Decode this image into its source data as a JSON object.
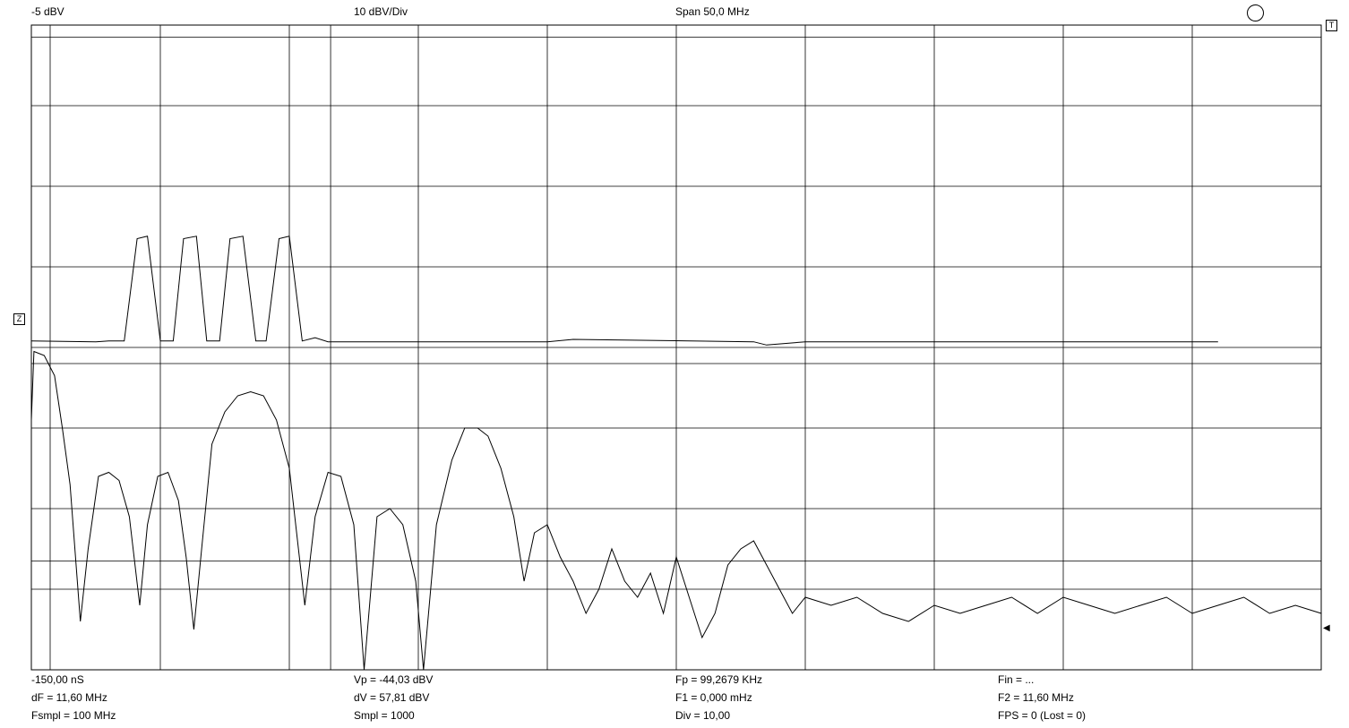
{
  "header": {
    "ref_level": "-5 dBV",
    "scale": "10 dBV/Div",
    "span": "Span 50,0 MHz"
  },
  "markers": {
    "trigger": "T",
    "zero": "Z"
  },
  "footer": {
    "col1": [
      "-150,00 nS",
      "dF = 11,60 MHz",
      "Fsmpl = 100 MHz"
    ],
    "col2": [
      "Vp = -44,03 dBV",
      "dV = 57,81 dBV",
      "Smpl = 1000"
    ],
    "col3": [
      "Fp = 99,2679 KHz",
      "F1 = 0,000 mHz",
      "Div = 10,00"
    ],
    "col4": [
      "Fin = ...",
      "F2 = 11,60 MHz",
      "FPS = 0 (Lost = 0)"
    ]
  },
  "icons": {
    "circle": "circle-icon",
    "trigger_marker": "trigger-marker-icon",
    "zero_marker": "zero-marker-icon",
    "right_arrow": "right-arrow-icon"
  },
  "colors": {
    "background": "#ffffff",
    "trace": "#000000",
    "grid": "#000000"
  },
  "chart_data": {
    "type": "line",
    "grid": true,
    "x_divisions": 10,
    "y_divisions": 8,
    "units": {
      "x": "MHz",
      "y": "dBV"
    },
    "xlim": [
      0,
      50
    ],
    "ylim": [
      -85,
      -5
    ],
    "cursors": {
      "vertical_MHz": [
        0,
        11.6
      ],
      "horizontal_dBV": [
        -6.5,
        -47,
        -71.5
      ]
    },
    "series": [
      {
        "role": "time-domain trace",
        "points": [
          [
            0.0,
            -44.2
          ],
          [
            2.5,
            -44.3
          ],
          [
            3.0,
            -44.2
          ],
          [
            3.6,
            -44.2
          ],
          [
            4.1,
            -31.5
          ],
          [
            4.5,
            -31.2
          ],
          [
            5.0,
            -44.2
          ],
          [
            5.5,
            -44.2
          ],
          [
            5.9,
            -31.5
          ],
          [
            6.4,
            -31.2
          ],
          [
            6.8,
            -44.2
          ],
          [
            7.3,
            -44.2
          ],
          [
            7.7,
            -31.5
          ],
          [
            8.2,
            -31.2
          ],
          [
            8.7,
            -44.2
          ],
          [
            9.1,
            -44.2
          ],
          [
            9.6,
            -31.5
          ],
          [
            10.0,
            -31.2
          ],
          [
            10.5,
            -44.2
          ],
          [
            11.0,
            -43.8
          ],
          [
            11.5,
            -44.3
          ],
          [
            20.0,
            -44.3
          ],
          [
            21.0,
            -44.0
          ],
          [
            28.0,
            -44.3
          ],
          [
            28.5,
            -44.7
          ],
          [
            30.0,
            -44.3
          ],
          [
            46.0,
            -44.3
          ]
        ]
      },
      {
        "role": "spectrum trace",
        "points": [
          [
            0.0,
            -54
          ],
          [
            0.1,
            -45.5
          ],
          [
            0.5,
            -46
          ],
          [
            0.9,
            -48.5
          ],
          [
            1.2,
            -55
          ],
          [
            1.5,
            -62
          ],
          [
            1.9,
            -79
          ],
          [
            2.2,
            -70
          ],
          [
            2.6,
            -61
          ],
          [
            3.0,
            -60.5
          ],
          [
            3.4,
            -61.5
          ],
          [
            3.8,
            -66
          ],
          [
            4.2,
            -77
          ],
          [
            4.5,
            -67
          ],
          [
            4.9,
            -61
          ],
          [
            5.3,
            -60.5
          ],
          [
            5.7,
            -64
          ],
          [
            6.0,
            -71
          ],
          [
            6.3,
            -80
          ],
          [
            6.6,
            -70
          ],
          [
            7.0,
            -57
          ],
          [
            7.5,
            -53
          ],
          [
            8.0,
            -51
          ],
          [
            8.5,
            -50.5
          ],
          [
            9.0,
            -51
          ],
          [
            9.5,
            -54
          ],
          [
            10.0,
            -60
          ],
          [
            10.6,
            -77
          ],
          [
            11.0,
            -66
          ],
          [
            11.5,
            -60.5
          ],
          [
            12.0,
            -61
          ],
          [
            12.5,
            -67
          ],
          [
            12.9,
            -85
          ],
          [
            13.4,
            -66
          ],
          [
            13.9,
            -65
          ],
          [
            14.4,
            -67
          ],
          [
            14.9,
            -74
          ],
          [
            15.2,
            -85
          ],
          [
            15.7,
            -67
          ],
          [
            16.3,
            -59
          ],
          [
            16.8,
            -55
          ],
          [
            17.3,
            -55
          ],
          [
            17.7,
            -56
          ],
          [
            18.2,
            -60
          ],
          [
            18.7,
            -66
          ],
          [
            19.1,
            -74
          ],
          [
            19.5,
            -68
          ],
          [
            20.0,
            -67
          ],
          [
            20.5,
            -71
          ],
          [
            21.0,
            -74
          ],
          [
            21.5,
            -78
          ],
          [
            22.0,
            -75
          ],
          [
            22.5,
            -70
          ],
          [
            23.0,
            -74
          ],
          [
            23.5,
            -76
          ],
          [
            24.0,
            -73
          ],
          [
            24.5,
            -78
          ],
          [
            25.0,
            -71
          ],
          [
            25.5,
            -76
          ],
          [
            26.0,
            -81
          ],
          [
            26.5,
            -78
          ],
          [
            27.0,
            -72
          ],
          [
            27.5,
            -70
          ],
          [
            28.0,
            -69
          ],
          [
            28.5,
            -72
          ],
          [
            29.0,
            -75
          ],
          [
            29.5,
            -78
          ],
          [
            30.0,
            -76
          ],
          [
            31.0,
            -77
          ],
          [
            32.0,
            -76
          ],
          [
            33.0,
            -78
          ],
          [
            34.0,
            -79
          ],
          [
            35.0,
            -77
          ],
          [
            36.0,
            -78
          ],
          [
            37.0,
            -77
          ],
          [
            38.0,
            -76
          ],
          [
            39.0,
            -78
          ],
          [
            40.0,
            -76
          ],
          [
            41.0,
            -77
          ],
          [
            42.0,
            -78
          ],
          [
            43.0,
            -77
          ],
          [
            44.0,
            -76
          ],
          [
            45.0,
            -78
          ],
          [
            46.0,
            -77
          ],
          [
            47.0,
            -76
          ],
          [
            48.0,
            -78
          ],
          [
            49.0,
            -77
          ],
          [
            50.0,
            -78
          ]
        ]
      }
    ]
  }
}
